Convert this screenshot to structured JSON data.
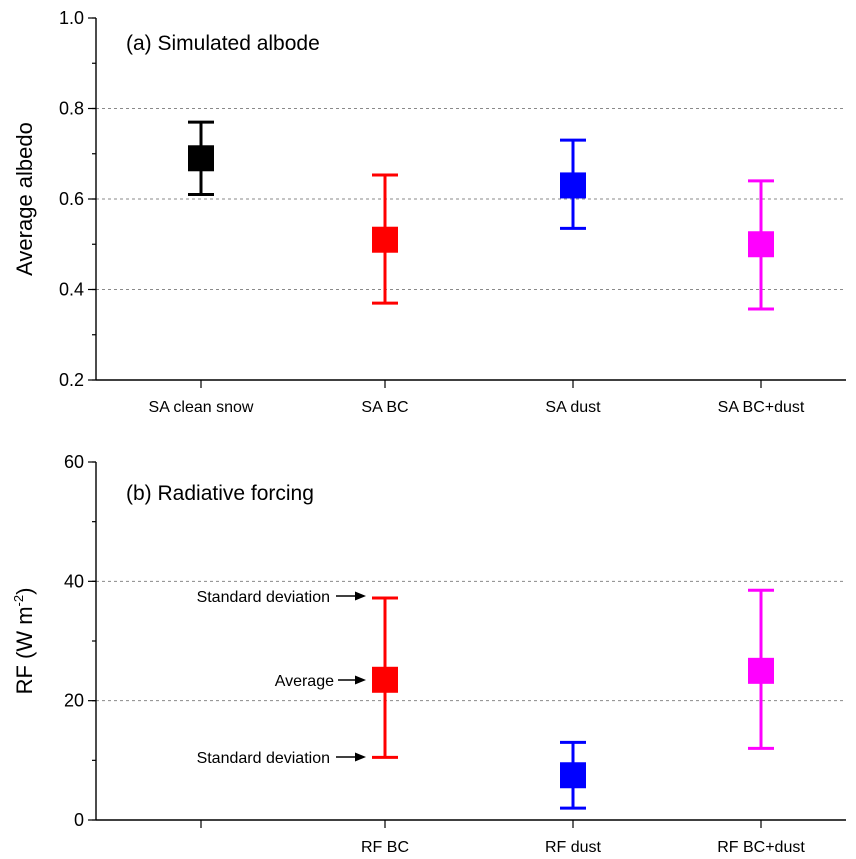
{
  "chart_data": [
    {
      "type": "errorbar",
      "title": "(a) Simulated albode",
      "xlabel": "",
      "ylabel": "Average albedo",
      "ylim": [
        0.2,
        1.0
      ],
      "yticks": [
        "0.2",
        "0.4",
        "0.6",
        "0.8",
        "1.0"
      ],
      "grid": "horizontal dashed at 0.4, 0.6, 0.8",
      "categories": [
        "SA clean snow",
        "SA BC",
        "SA dust",
        "SA BC+dust"
      ],
      "series": [
        {
          "values": [
            0.69,
            0.51,
            0.63,
            0.5
          ],
          "lower": [
            0.61,
            0.37,
            0.535,
            0.357
          ],
          "upper": [
            0.77,
            0.653,
            0.73,
            0.64
          ],
          "colors": [
            "#000000",
            "#ff0000",
            "#0000ff",
            "#ff00ff"
          ]
        }
      ]
    },
    {
      "type": "errorbar",
      "title": "(b) Radiative forcing",
      "xlabel": "",
      "ylabel": "RF (W m",
      "ylabel_sup": "-2",
      "ylabel_end": ")",
      "ylim": [
        0,
        60
      ],
      "yticks": [
        "0",
        "20",
        "40",
        "60"
      ],
      "grid": "horizontal dashed at 20, 40",
      "categories": [
        "",
        "RF BC",
        "RF dust",
        "RF BC+dust"
      ],
      "series": [
        {
          "values": [
            null,
            23.5,
            7.5,
            25.0
          ],
          "lower": [
            null,
            10.5,
            2.0,
            12.0
          ],
          "upper": [
            null,
            37.2,
            13.0,
            38.5
          ],
          "colors": [
            "#000000",
            "#ff0000",
            "#0000ff",
            "#ff00ff"
          ]
        }
      ],
      "annotations": [
        "Standard deviation",
        "Average",
        "Standard deviation"
      ]
    }
  ]
}
